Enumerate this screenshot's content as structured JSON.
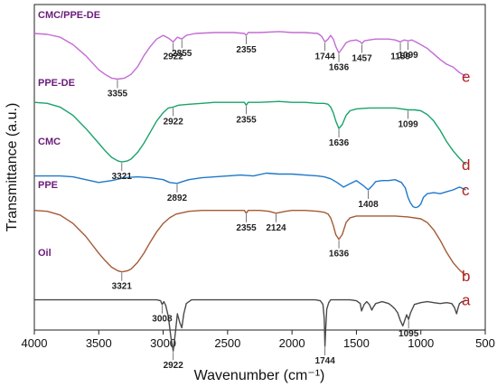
{
  "chart_data": {
    "type": "line",
    "xlabel": "Wavenumber (cm⁻¹)",
    "ylabel": "Transmittance (a.u.)",
    "xlim": [
      4000,
      500
    ],
    "x_ticks": [
      "4000",
      "3500",
      "3000",
      "2500",
      "2000",
      "1500",
      "1000",
      "500"
    ],
    "x_tick_values": [
      4000,
      3500,
      3000,
      2500,
      2000,
      1500,
      1000,
      500
    ],
    "y_ticks_shown": false,
    "grid": false,
    "legend": "none",
    "series": [
      {
        "name": "CMC/PPE-DE",
        "letter": "e",
        "color": "#c36bd4",
        "x": [
          4000,
          3900,
          3800,
          3700,
          3600,
          3500,
          3450,
          3400,
          3355,
          3300,
          3250,
          3200,
          3150,
          3100,
          3050,
          3000,
          2960,
          2922,
          2890,
          2855,
          2820,
          2750,
          2600,
          2450,
          2370,
          2355,
          2340,
          2250,
          2100,
          2000,
          1900,
          1800,
          1770,
          1744,
          1720,
          1700,
          1680,
          1660,
          1636,
          1610,
          1580,
          1550,
          1500,
          1470,
          1457,
          1440,
          1400,
          1350,
          1300,
          1250,
          1200,
          1159,
          1130,
          1099,
          1070,
          1040,
          1000,
          950,
          900,
          850,
          800,
          750,
          700,
          650
        ],
        "y": [
          2.86,
          2.85,
          2.82,
          2.74,
          2.62,
          2.47,
          2.42,
          2.38,
          2.37,
          2.38,
          2.42,
          2.5,
          2.62,
          2.72,
          2.8,
          2.84,
          2.81,
          2.77,
          2.82,
          2.8,
          2.84,
          2.86,
          2.87,
          2.87,
          2.86,
          2.84,
          2.87,
          2.87,
          2.88,
          2.87,
          2.87,
          2.86,
          2.83,
          2.77,
          2.8,
          2.84,
          2.8,
          2.72,
          2.65,
          2.7,
          2.76,
          2.78,
          2.79,
          2.77,
          2.75,
          2.78,
          2.79,
          2.8,
          2.8,
          2.8,
          2.79,
          2.77,
          2.79,
          2.78,
          2.79,
          2.77,
          2.74,
          2.7,
          2.64,
          2.58,
          2.53,
          2.5,
          2.44,
          2.4
        ]
      },
      {
        "name": "PPE-DE",
        "letter": "d",
        "color": "#1aa36b",
        "x": [
          4000,
          3900,
          3800,
          3700,
          3600,
          3500,
          3450,
          3400,
          3350,
          3321,
          3280,
          3250,
          3200,
          3150,
          3100,
          3050,
          3000,
          2960,
          2922,
          2880,
          2800,
          2700,
          2600,
          2450,
          2370,
          2355,
          2340,
          2250,
          2100,
          2000,
          1900,
          1800,
          1750,
          1720,
          1700,
          1680,
          1660,
          1636,
          1610,
          1580,
          1550,
          1500,
          1400,
          1300,
          1200,
          1150,
          1099,
          1050,
          1000,
          950,
          900,
          850,
          800,
          750,
          700,
          650
        ],
        "y": [
          2.12,
          2.11,
          2.07,
          1.98,
          1.84,
          1.68,
          1.6,
          1.53,
          1.49,
          1.48,
          1.49,
          1.51,
          1.58,
          1.68,
          1.8,
          1.92,
          2.01,
          2.06,
          2.07,
          2.09,
          2.1,
          2.11,
          2.12,
          2.12,
          2.12,
          2.09,
          2.12,
          2.12,
          2.13,
          2.12,
          2.12,
          2.11,
          2.11,
          2.1,
          2.07,
          2.01,
          1.92,
          1.84,
          1.88,
          1.98,
          2.03,
          2.05,
          2.06,
          2.06,
          2.06,
          2.05,
          2.04,
          2.04,
          2.03,
          1.99,
          1.92,
          1.82,
          1.7,
          1.6,
          1.52,
          1.45
        ]
      },
      {
        "name": "CMC",
        "letter": "c",
        "color": "#1f78c8",
        "x": [
          4000,
          3900,
          3800,
          3700,
          3600,
          3500,
          3400,
          3300,
          3200,
          3100,
          3000,
          2950,
          2892,
          2850,
          2800,
          2700,
          2600,
          2500,
          2400,
          2300,
          2200,
          2100,
          2000,
          1900,
          1800,
          1750,
          1700,
          1650,
          1600,
          1560,
          1500,
          1450,
          1408,
          1380,
          1350,
          1300,
          1250,
          1200,
          1150,
          1120,
          1100,
          1080,
          1060,
          1040,
          1020,
          1000,
          980,
          950,
          900,
          850,
          800,
          750,
          700,
          650
        ],
        "y": [
          1.33,
          1.33,
          1.33,
          1.32,
          1.29,
          1.26,
          1.28,
          1.31,
          1.32,
          1.31,
          1.29,
          1.26,
          1.25,
          1.27,
          1.29,
          1.31,
          1.32,
          1.33,
          1.34,
          1.33,
          1.36,
          1.35,
          1.35,
          1.34,
          1.33,
          1.32,
          1.3,
          1.26,
          1.21,
          1.24,
          1.28,
          1.23,
          1.18,
          1.22,
          1.27,
          1.28,
          1.28,
          1.29,
          1.26,
          1.2,
          1.1,
          1.04,
          1.0,
          0.99,
          1.0,
          1.03,
          1.1,
          1.14,
          1.15,
          1.14,
          1.16,
          1.18,
          1.21,
          1.18
        ]
      },
      {
        "name": "PPE",
        "letter": "b",
        "color": "#a35a35",
        "x": [
          4000,
          3900,
          3800,
          3700,
          3600,
          3500,
          3450,
          3400,
          3350,
          3321,
          3280,
          3250,
          3200,
          3150,
          3100,
          3050,
          3000,
          2950,
          2900,
          2800,
          2700,
          2600,
          2450,
          2370,
          2355,
          2340,
          2250,
          2180,
          2124,
          2050,
          2000,
          1900,
          1800,
          1750,
          1720,
          1700,
          1680,
          1660,
          1636,
          1610,
          1580,
          1550,
          1500,
          1400,
          1300,
          1200,
          1100,
          1000,
          950,
          900,
          850,
          800,
          750,
          700,
          650
        ],
        "y": [
          0.96,
          0.95,
          0.91,
          0.82,
          0.68,
          0.5,
          0.42,
          0.35,
          0.31,
          0.3,
          0.31,
          0.33,
          0.4,
          0.5,
          0.62,
          0.73,
          0.82,
          0.88,
          0.92,
          0.95,
          0.96,
          0.96,
          0.96,
          0.96,
          0.93,
          0.96,
          0.96,
          0.95,
          0.93,
          0.95,
          0.96,
          0.96,
          0.95,
          0.94,
          0.92,
          0.88,
          0.8,
          0.7,
          0.65,
          0.7,
          0.83,
          0.88,
          0.9,
          0.9,
          0.9,
          0.9,
          0.89,
          0.87,
          0.83,
          0.75,
          0.64,
          0.51,
          0.4,
          0.32,
          0.26
        ]
      },
      {
        "name": "Oil",
        "letter": "a",
        "color": "#4a4a4a",
        "x": [
          4000,
          3800,
          3600,
          3400,
          3200,
          3100,
          3050,
          3020,
          3008,
          2995,
          2980,
          2960,
          2940,
          2922,
          2905,
          2890,
          2870,
          2855,
          2840,
          2820,
          2780,
          2700,
          2600,
          2500,
          2400,
          2300,
          2200,
          2100,
          2000,
          1900,
          1820,
          1780,
          1760,
          1750,
          1744,
          1738,
          1730,
          1715,
          1700,
          1650,
          1600,
          1550,
          1500,
          1470,
          1460,
          1440,
          1420,
          1400,
          1380,
          1370,
          1350,
          1300,
          1250,
          1230,
          1200,
          1180,
          1160,
          1140,
          1120,
          1110,
          1095,
          1080,
          1050,
          1000,
          950,
          900,
          850,
          800,
          760,
          740,
          722,
          710,
          700,
          680,
          660,
          650
        ],
        "y": [
          0.0,
          0.0,
          0.0,
          0.0,
          0.0,
          0.0,
          0.0,
          -0.01,
          -0.05,
          -0.02,
          -0.06,
          -0.18,
          -0.4,
          -0.55,
          -0.35,
          -0.15,
          -0.25,
          -0.3,
          -0.15,
          -0.04,
          0.0,
          0.0,
          0.0,
          0.0,
          0.0,
          0.0,
          0.0,
          0.0,
          0.0,
          0.0,
          0.0,
          -0.01,
          -0.05,
          -0.2,
          -0.5,
          -0.3,
          -0.1,
          -0.03,
          0.0,
          0.0,
          0.0,
          0.0,
          -0.01,
          -0.04,
          -0.12,
          -0.05,
          -0.02,
          -0.05,
          -0.11,
          -0.08,
          -0.04,
          -0.02,
          -0.04,
          -0.06,
          -0.1,
          -0.14,
          -0.22,
          -0.28,
          -0.2,
          -0.16,
          -0.21,
          -0.14,
          -0.05,
          -0.03,
          -0.02,
          -0.03,
          -0.04,
          -0.03,
          -0.04,
          -0.08,
          -0.15,
          -0.08,
          -0.04,
          -0.02,
          -0.01,
          0.0
        ]
      }
    ],
    "annotations": [
      {
        "text": "3355",
        "x": 3355,
        "series": 0
      },
      {
        "text": "2922",
        "x": 2922,
        "series": 0
      },
      {
        "text": "2855",
        "x": 2855,
        "series": 0
      },
      {
        "text": "2355",
        "x": 2355,
        "series": 0
      },
      {
        "text": "1744",
        "x": 1744,
        "series": 0
      },
      {
        "text": "1636",
        "x": 1636,
        "series": 0
      },
      {
        "text": "1457",
        "x": 1457,
        "series": 0
      },
      {
        "text": "1159",
        "x": 1159,
        "series": 0
      },
      {
        "text": "1099",
        "x": 1099,
        "series": 0
      },
      {
        "text": "3321",
        "x": 3321,
        "series": 1
      },
      {
        "text": "2922",
        "x": 2922,
        "series": 1
      },
      {
        "text": "2355",
        "x": 2355,
        "series": 1
      },
      {
        "text": "1636",
        "x": 1636,
        "series": 1
      },
      {
        "text": "1099",
        "x": 1099,
        "series": 1
      },
      {
        "text": "2892",
        "x": 2892,
        "series": 2
      },
      {
        "text": "1408",
        "x": 1408,
        "series": 2
      },
      {
        "text": "3321",
        "x": 3321,
        "series": 3
      },
      {
        "text": "2355",
        "x": 2355,
        "series": 3
      },
      {
        "text": "2124",
        "x": 2124,
        "series": 3
      },
      {
        "text": "1636",
        "x": 1636,
        "series": 3
      },
      {
        "text": "3008",
        "x": 3008,
        "series": 4
      },
      {
        "text": "2922",
        "x": 2922,
        "series": 4
      },
      {
        "text": "1744",
        "x": 1744,
        "series": 4
      },
      {
        "text": "1095",
        "x": 1095,
        "series": 4
      }
    ]
  }
}
